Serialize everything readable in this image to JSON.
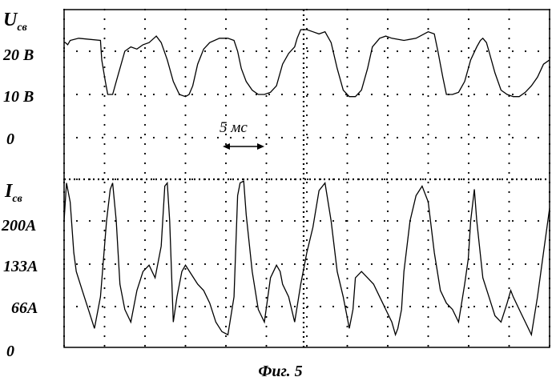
{
  "figure_caption": "Фиг. 5",
  "chart_data": [
    {
      "type": "line",
      "title": "",
      "ylabel": "U",
      "ylabel_subscript": "св",
      "ytick_labels": [
        "20 В",
        "10 В",
        "0"
      ],
      "yticks": [
        20,
        10,
        0
      ],
      "ylim": [
        0,
        25
      ],
      "xlim": [
        0,
        40
      ],
      "grid": "dotted",
      "series": [
        {
          "x": [
            0,
            0.1,
            0.3,
            0.5,
            1.2,
            3.0,
            3.1,
            3.4,
            3.6,
            4.0,
            4.3,
            5.0,
            5.5,
            6.0,
            6.5,
            7.0,
            7.4,
            7.6,
            8.0,
            8.5,
            9.0,
            9.5,
            10.0,
            10.3,
            10.6,
            11.0,
            11.5,
            12.0,
            12.8,
            13.5,
            14.0,
            14.3,
            14.6,
            15.0,
            15.5,
            16.0,
            16.5,
            17.0,
            17.5,
            18.0,
            18.5,
            19.0,
            19.2,
            19.5,
            20.0,
            20.5,
            21.0,
            21.5,
            22.0,
            22.5,
            23.0,
            23.5,
            24.0,
            24.5,
            25.0,
            25.4,
            25.7,
            26.0,
            26.5,
            27.0,
            28.0,
            29.0,
            30.0,
            30.5,
            30.8,
            31.2,
            31.5,
            32.0,
            32.5,
            33.0,
            33.5,
            34.0,
            34.3,
            34.5,
            34.8,
            35.0,
            35.5,
            36.0,
            36.5,
            37.0,
            37.5,
            38.0,
            38.5,
            39.0,
            39.5,
            40.0
          ],
          "y": [
            22,
            22,
            21.5,
            22.5,
            23,
            22.5,
            18,
            13,
            10,
            10,
            13,
            20,
            21,
            20.5,
            21.5,
            22,
            23,
            23.5,
            22,
            18,
            13,
            10,
            9.5,
            10,
            12,
            17,
            20.5,
            22,
            23,
            23,
            22.5,
            20,
            16,
            13,
            11,
            10,
            10,
            10.5,
            12,
            17,
            19.5,
            21,
            23,
            25,
            25,
            24.5,
            24,
            24.5,
            22,
            16,
            11,
            9.5,
            9.5,
            11,
            16,
            21,
            22,
            23,
            23.5,
            23,
            22.5,
            23,
            24.5,
            24,
            20,
            14,
            10,
            10,
            10.5,
            13,
            18,
            21,
            22.5,
            23,
            22,
            20,
            15,
            11,
            10,
            9.5,
            9.5,
            10.5,
            12,
            14,
            17,
            18
          ]
        }
      ]
    },
    {
      "type": "line",
      "title": "",
      "ylabel": "I",
      "ylabel_subscript": "св",
      "ytick_labels": [
        "200А",
        "133А",
        "66А",
        "0"
      ],
      "yticks": [
        200,
        133,
        66,
        0
      ],
      "ylim": [
        0,
        266
      ],
      "xlim": [
        0,
        40
      ],
      "grid": "dotted",
      "series": [
        {
          "x": [
            0,
            0.2,
            0.5,
            0.8,
            1.0,
            1.5,
            2.0,
            2.5,
            3.0,
            3.5,
            3.8,
            4.0,
            4.3,
            4.6,
            5.0,
            5.5,
            6.0,
            6.5,
            7.0,
            7.5,
            8.0,
            8.3,
            8.5,
            8.7,
            9.0,
            9.3,
            9.7,
            10.0,
            10.5,
            11.0,
            11.5,
            12.0,
            12.5,
            13.0,
            13.5,
            14.0,
            14.3,
            14.5,
            14.8,
            15.0,
            15.5,
            16.0,
            16.5,
            17.0,
            17.5,
            17.8,
            18.0,
            18.5,
            19.0,
            19.5,
            20.0,
            20.5,
            21.0,
            21.5,
            22.0,
            22.5,
            23.0,
            23.3,
            23.5,
            23.8,
            24.0,
            24.5,
            25.0,
            25.5,
            26.0,
            26.5,
            27.0,
            27.3,
            27.5,
            27.8,
            28.0,
            28.5,
            29.0,
            29.5,
            30.0,
            30.5,
            31.0,
            31.5,
            32.0,
            32.5,
            33.0,
            33.3,
            33.5,
            33.8,
            34.0,
            34.5,
            35.0,
            35.5,
            36.0,
            36.5,
            36.8,
            37.0,
            37.5,
            38.0,
            38.5,
            39.0,
            39.5,
            40.0
          ],
          "y": [
            200,
            260,
            230,
            150,
            120,
            90,
            60,
            30,
            80,
            200,
            250,
            260,
            200,
            100,
            60,
            40,
            90,
            120,
            130,
            110,
            160,
            255,
            260,
            200,
            40,
            80,
            120,
            130,
            115,
            100,
            90,
            70,
            40,
            25,
            20,
            80,
            240,
            260,
            263,
            210,
            120,
            60,
            40,
            110,
            130,
            120,
            100,
            80,
            40,
            100,
            150,
            190,
            248,
            260,
            200,
            120,
            80,
            50,
            30,
            60,
            110,
            120,
            110,
            100,
            80,
            60,
            40,
            20,
            30,
            60,
            120,
            200,
            240,
            255,
            230,
            150,
            90,
            70,
            60,
            40,
            100,
            140,
            200,
            250,
            200,
            110,
            80,
            50,
            40,
            70,
            90,
            80,
            60,
            40,
            20,
            80,
            150,
            220
          ]
        }
      ]
    }
  ],
  "annotations": {
    "interval_label": "5 мс"
  }
}
